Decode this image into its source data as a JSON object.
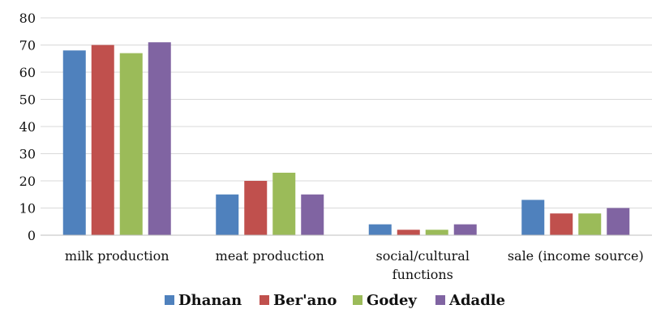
{
  "chart_data": {
    "type": "bar",
    "categories": [
      [
        "milk production"
      ],
      [
        "meat production"
      ],
      [
        "social/cultural",
        "functions"
      ],
      [
        "sale (income source)"
      ]
    ],
    "series": [
      {
        "name": "Dhanan",
        "color": "#4F81BD",
        "values": [
          68,
          15,
          4,
          13
        ]
      },
      {
        "name": "Ber'ano",
        "color": "#C0504D",
        "values": [
          70,
          20,
          2,
          8
        ]
      },
      {
        "name": "Godey",
        "color": "#9BBB59",
        "values": [
          67,
          23,
          2,
          8
        ]
      },
      {
        "name": "Adadle",
        "color": "#8064A2",
        "values": [
          71,
          15,
          4,
          10
        ]
      }
    ],
    "ylim": [
      0,
      80
    ],
    "yticks": [
      0,
      10,
      20,
      30,
      40,
      50,
      60,
      70,
      80
    ],
    "grid": true,
    "legend_position": "bottom"
  }
}
